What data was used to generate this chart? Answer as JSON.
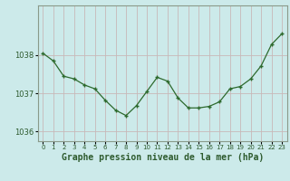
{
  "x": [
    0,
    1,
    2,
    3,
    4,
    5,
    6,
    7,
    8,
    9,
    10,
    11,
    12,
    13,
    14,
    15,
    16,
    17,
    18,
    19,
    20,
    21,
    22,
    23
  ],
  "y": [
    1038.05,
    1037.85,
    1037.45,
    1037.38,
    1037.22,
    1037.12,
    1036.82,
    1036.56,
    1036.42,
    1036.68,
    1037.05,
    1037.42,
    1037.32,
    1036.88,
    1036.62,
    1036.62,
    1036.66,
    1036.78,
    1037.12,
    1037.18,
    1037.38,
    1037.72,
    1038.28,
    1038.56
  ],
  "line_color": "#2d6a2d",
  "marker_color": "#2d6a2d",
  "bg_color": "#cceaea",
  "grid_color": "#c8b8b8",
  "border_color": "#8a9a8a",
  "xlabel": "Graphe pression niveau de la mer (hPa)",
  "xlabel_color": "#2d5a2d",
  "tick_color": "#2d5a2d",
  "ylim_min": 1035.75,
  "ylim_max": 1039.3,
  "yticks": [
    1036,
    1037,
    1038
  ],
  "xticks": [
    0,
    1,
    2,
    3,
    4,
    5,
    6,
    7,
    8,
    9,
    10,
    11,
    12,
    13,
    14,
    15,
    16,
    17,
    18,
    19,
    20,
    21,
    22,
    23
  ],
  "title_fontsize": 7.0,
  "tick_fontsize": 6.0
}
